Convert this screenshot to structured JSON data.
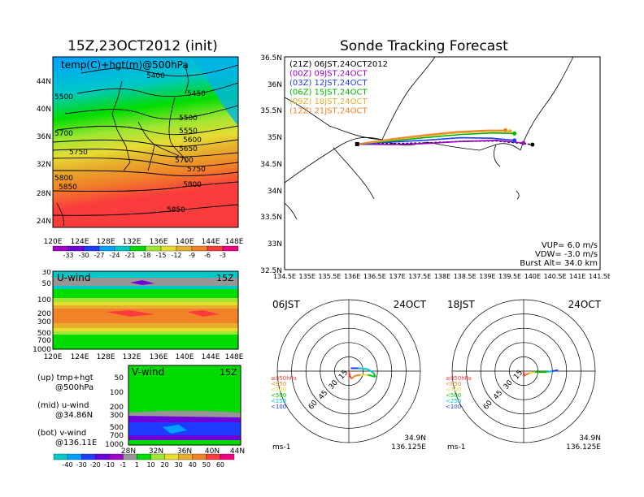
{
  "titles": {
    "left": "15Z,23OCT2012 (init)",
    "right": "Sonde Tracking Forecast"
  },
  "top_map": {
    "label": "temp(C)+hgt(m)@500hPa",
    "lat_ticks": [
      "44N",
      "40N",
      "36N",
      "32N",
      "28N",
      "24N"
    ],
    "lon_ticks": [
      "120E",
      "124E",
      "128E",
      "132E",
      "136E",
      "140E",
      "144E",
      "148E"
    ],
    "contour_labels": [
      "5400",
      "5450",
      "5500",
      "5550",
      "5600",
      "5650",
      "5700",
      "5750",
      "5800",
      "5850",
      "5850",
      "5750",
      "5700",
      "5500",
      "5800"
    ],
    "colorbar": {
      "labels": [
        "-33",
        "-30",
        "-27",
        "-24",
        "-21",
        "-18",
        "-15",
        "-12",
        "-9",
        "-6",
        "-3"
      ],
      "colors": [
        "#a000c8",
        "#6e00dc",
        "#1e3cff",
        "#00a0ff",
        "#00c8c8",
        "#00dc00",
        "#a0e632",
        "#e6dc32",
        "#e6af2d",
        "#f08228",
        "#fa3c3c",
        "#f00082"
      ]
    }
  },
  "u_wind": {
    "label": "U-wind",
    "time": "15Z",
    "p_ticks": [
      "30",
      "50",
      "100",
      "200",
      "300",
      "500",
      "700",
      "1000"
    ],
    "lon_ticks": [
      "120E",
      "124E",
      "128E",
      "132E",
      "136E",
      "140E",
      "144E",
      "148E"
    ]
  },
  "v_wind": {
    "label": "V-wind",
    "time": "15Z",
    "p_ticks": [
      "50",
      "100",
      "200",
      "300",
      "500",
      "700",
      "1000"
    ],
    "lat_ticks": [
      "28N",
      "32N",
      "36N",
      "40N",
      "44N"
    ],
    "colorbar": {
      "labels": [
        "-40",
        "-30",
        "-20",
        "-10",
        "-1",
        "1",
        "10",
        "20",
        "30",
        "40",
        "50",
        "60"
      ],
      "colors": [
        "#00c8c8",
        "#00a0ff",
        "#1e3cff",
        "#6e00dc",
        "#a000c8",
        "#969696",
        "#00dc00",
        "#a0e632",
        "#e6dc32",
        "#e6af2d",
        "#f08228",
        "#fa3c3c",
        "#f00082"
      ]
    }
  },
  "legend_notes": [
    {
      "a": "(up) tmp+hgt",
      "b": "@500hPa"
    },
    {
      "a": "(mid) u-wind",
      "b": "@34.86N"
    },
    {
      "a": "(bot) v-wind",
      "b": "@136.11E"
    }
  ],
  "track": {
    "lat_ticks": [
      "36.5N",
      "36N",
      "35.5N",
      "35N",
      "34.5N",
      "34N",
      "33.5N",
      "33N",
      "32.5N"
    ],
    "lon_ticks": [
      "134.5E",
      "135E",
      "135.5E",
      "136E",
      "136.5E",
      "137E",
      "137.5E",
      "138E",
      "138.5E",
      "139E",
      "139.5E",
      "140E",
      "140.5E",
      "141E",
      "141.5E"
    ],
    "legend": [
      {
        "text": "(21Z)  06JST,24OCT2012",
        "color": "#000000"
      },
      {
        "text": "(00Z)  09JST,24OCT",
        "color": "#a000c8"
      },
      {
        "text": "(03Z)  12JST,24OCT",
        "color": "#1e3cff"
      },
      {
        "text": "(06Z)  15JST,24OCT",
        "color": "#00b400"
      },
      {
        "text": "(09Z)  18JST,24OCT",
        "color": "#e6af2d"
      },
      {
        "text": "(12Z)  21JST,24OCT",
        "color": "#f08228"
      }
    ],
    "params": [
      "VUP=  6.0  m/s",
      "VDW= -3.0  m/s",
      "Burst Alt=  34.0  km"
    ]
  },
  "chart_data": [
    {
      "type": "line",
      "title": "Sonde Tracking Forecast",
      "xlabel": "",
      "ylabel": "",
      "xlim": [
        134.5,
        141.5
      ],
      "ylim": [
        32.5,
        36.5
      ],
      "series": [
        {
          "name": "(21Z)  06JST,24OCT2012",
          "x": [
            136.11,
            136.9,
            137.6,
            138.4,
            139.2,
            139.7,
            140.0
          ],
          "y": [
            34.86,
            34.87,
            34.88,
            34.91,
            34.92,
            34.88,
            34.85
          ]
        },
        {
          "name": "(00Z)  09JST,24OCT",
          "x": [
            136.11,
            136.9,
            137.6,
            138.4,
            139.2,
            139.8
          ],
          "y": [
            34.86,
            34.85,
            34.87,
            34.91,
            34.93,
            34.88
          ]
        },
        {
          "name": "(03Z)  12JST,24OCT",
          "x": [
            136.11,
            136.9,
            137.6,
            138.4,
            139.1,
            139.6
          ],
          "y": [
            34.86,
            34.9,
            34.93,
            34.98,
            34.97,
            34.93
          ]
        },
        {
          "name": "(06Z)  15JST,24OCT",
          "x": [
            136.11,
            136.9,
            137.6,
            138.4,
            139.1,
            139.6
          ],
          "y": [
            34.86,
            34.92,
            34.98,
            35.04,
            35.07,
            35.06
          ]
        },
        {
          "name": "(09Z)  18JST,24OCT",
          "x": [
            136.11,
            136.9,
            137.6,
            138.3,
            139.0,
            139.5
          ],
          "y": [
            34.86,
            34.94,
            35.01,
            35.07,
            35.1,
            35.1
          ]
        },
        {
          "name": "(12Z)  21JST,24OCT",
          "x": [
            136.11,
            136.9,
            137.6,
            138.3,
            139.0,
            139.4
          ],
          "y": [
            34.86,
            34.96,
            35.03,
            35.09,
            35.12,
            35.12
          ]
        }
      ]
    },
    {
      "type": "scatter",
      "title": "06JST 24OCT",
      "rings": [
        "15",
        "30",
        "45",
        "60"
      ],
      "unit": "ms-1",
      "location": [
        "34.9N",
        "136.125E"
      ],
      "legend": [
        {
          "text": "≥850hPa",
          "color": "#fa3c3c"
        },
        {
          "text": "<850",
          "color": "#f08228"
        },
        {
          "text": "<700",
          "color": "#e6dc32"
        },
        {
          "text": "<500",
          "color": "#00c800"
        },
        {
          "text": "<250",
          "color": "#00c8c8"
        },
        {
          "text": "<100",
          "color": "#1e3cff"
        }
      ],
      "hodograph": [
        {
          "u": 0,
          "v": 0
        },
        {
          "u": 1,
          "v": -5
        },
        {
          "u": 3,
          "v": -8
        },
        {
          "u": 6,
          "v": -5
        },
        {
          "u": 12,
          "v": -4
        },
        {
          "u": 20,
          "v": -4
        },
        {
          "u": 28,
          "v": -6
        },
        {
          "u": 26,
          "v": -2
        },
        {
          "u": 20,
          "v": 2
        },
        {
          "u": 10,
          "v": 3
        },
        {
          "u": 2,
          "v": 3
        }
      ]
    },
    {
      "type": "scatter",
      "title": "18JST 24OCT",
      "rings": [
        "15",
        "30",
        "45",
        "60"
      ],
      "unit": "ms-1",
      "location": [
        "34.9N",
        "136.125E"
      ],
      "legend": [
        {
          "text": "≥850hPa",
          "color": "#fa3c3c"
        },
        {
          "text": "<850",
          "color": "#f08228"
        },
        {
          "text": "<700",
          "color": "#e6dc32"
        },
        {
          "text": "<500",
          "color": "#00c800"
        },
        {
          "text": "<250",
          "color": "#00c8c8"
        },
        {
          "text": "<100",
          "color": "#1e3cff"
        }
      ],
      "hodograph": [
        {
          "u": 0,
          "v": 0
        },
        {
          "u": 0,
          "v": -5
        },
        {
          "u": 2,
          "v": -4
        },
        {
          "u": 6,
          "v": -2
        },
        {
          "u": 12,
          "v": -1
        },
        {
          "u": 18,
          "v": -1
        },
        {
          "u": 24,
          "v": -1
        },
        {
          "u": 30,
          "v": 0
        },
        {
          "u": 36,
          "v": 1
        }
      ]
    }
  ]
}
